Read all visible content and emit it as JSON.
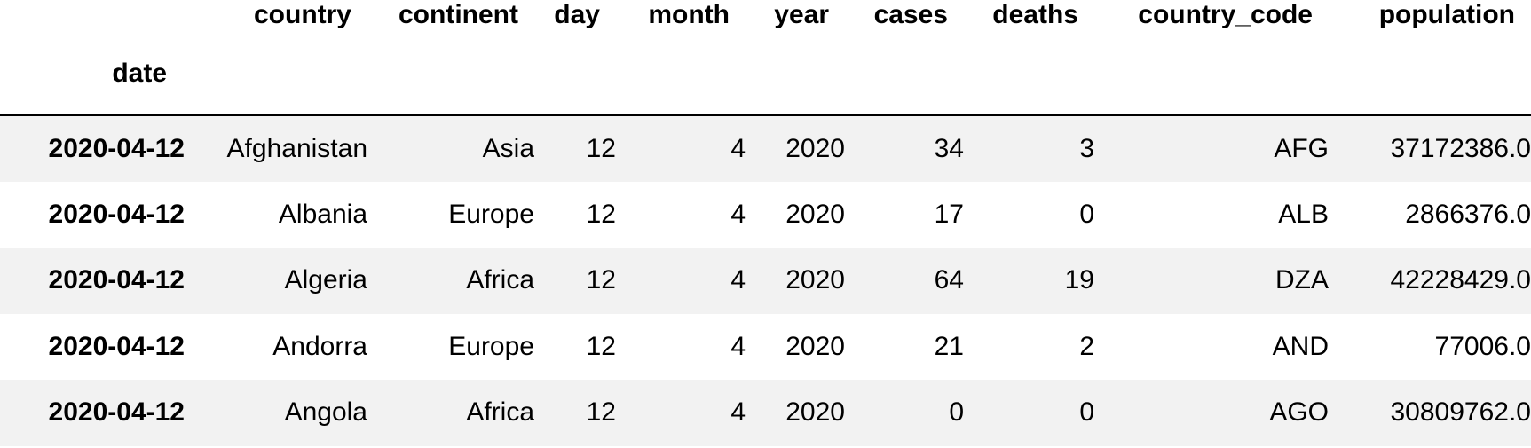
{
  "table": {
    "columns": [
      "country",
      "continent",
      "day",
      "month",
      "year",
      "cases",
      "deaths",
      "country_code",
      "population"
    ],
    "index_name": "date",
    "rows": [
      {
        "index": "2020-04-12",
        "cells": [
          "Afghanistan",
          "Asia",
          "12",
          "4",
          "2020",
          "34",
          "3",
          "AFG",
          "37172386.0"
        ]
      },
      {
        "index": "2020-04-12",
        "cells": [
          "Albania",
          "Europe",
          "12",
          "4",
          "2020",
          "17",
          "0",
          "ALB",
          "2866376.0"
        ]
      },
      {
        "index": "2020-04-12",
        "cells": [
          "Algeria",
          "Africa",
          "12",
          "4",
          "2020",
          "64",
          "19",
          "DZA",
          "42228429.0"
        ]
      },
      {
        "index": "2020-04-12",
        "cells": [
          "Andorra",
          "Europe",
          "12",
          "4",
          "2020",
          "21",
          "2",
          "AND",
          "77006.0"
        ]
      },
      {
        "index": "2020-04-12",
        "cells": [
          "Angola",
          "Africa",
          "12",
          "4",
          "2020",
          "0",
          "0",
          "AGO",
          "30809762.0"
        ]
      }
    ]
  },
  "colors": {
    "striped_row": "#f2f2f2",
    "plain_row": "#ffffff",
    "header_rule": "#000000",
    "text": "#000000"
  }
}
